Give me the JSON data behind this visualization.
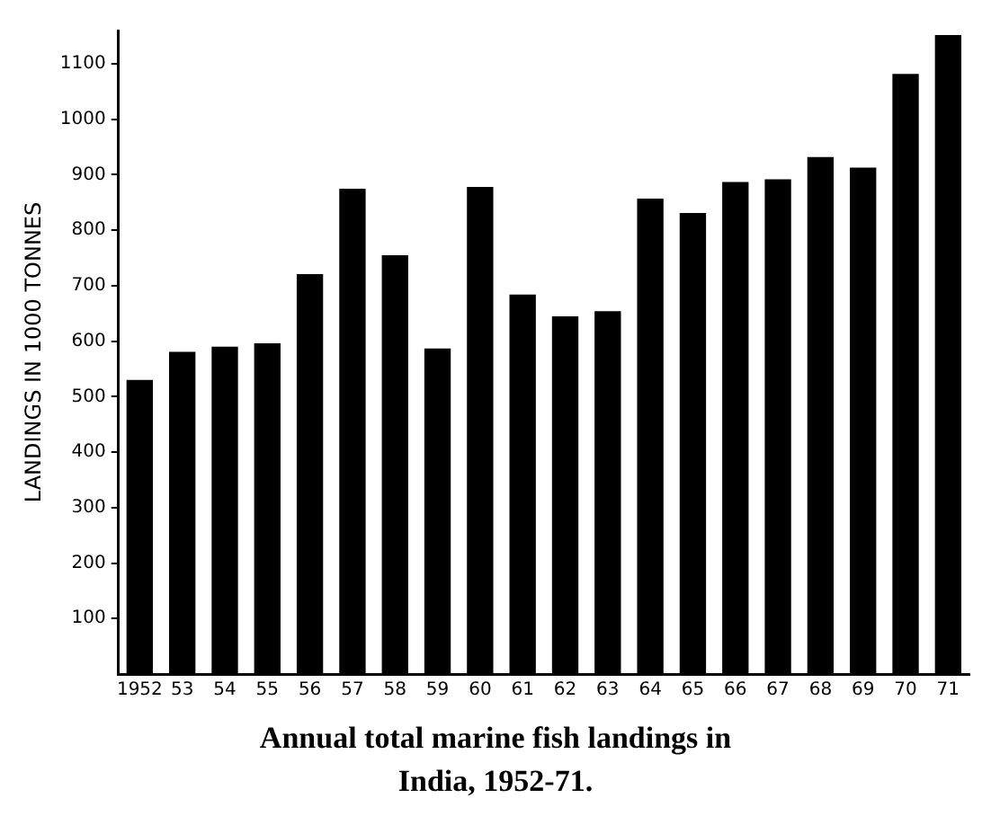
{
  "chart_data": {
    "type": "bar",
    "title": "Annual total marine fish landings in India, 1952-71.",
    "ylabel": "LANDINGS IN 1000 TONNES",
    "categories": [
      "1952",
      "53",
      "54",
      "55",
      "56",
      "57",
      "58",
      "59",
      "60",
      "61",
      "62",
      "63",
      "64",
      "65",
      "66",
      "67",
      "68",
      "69",
      "70",
      "71"
    ],
    "values": [
      530,
      581,
      590,
      596,
      721,
      875,
      755,
      587,
      878,
      684,
      645,
      654,
      857,
      831,
      887,
      892,
      932,
      913,
      1082,
      1152
    ],
    "color": "#000000",
    "ylim": [
      0,
      1160
    ],
    "yticks": [
      100,
      200,
      300,
      400,
      500,
      600,
      700,
      800,
      900,
      1000,
      1100
    ],
    "grid": false
  }
}
